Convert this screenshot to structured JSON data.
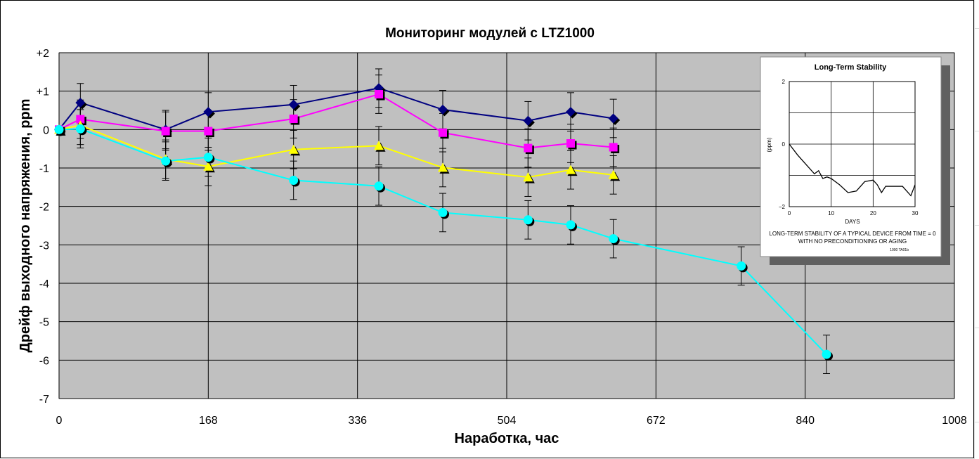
{
  "chart_data": {
    "type": "line",
    "title": "Мониторинг модулей с LTZ1000",
    "xlabel": "Наработка, час",
    "ylabel": "Дрейф выходного напряжения, ppm",
    "xlim": [
      0,
      1008
    ],
    "ylim": [
      -7,
      2
    ],
    "x_ticks": [
      0,
      168,
      336,
      504,
      672,
      840,
      1008
    ],
    "x_tick_labels": [
      "0",
      "168",
      "336",
      "504",
      "672",
      "840",
      "1008"
    ],
    "y_ticks": [
      2,
      1,
      0,
      -1,
      -2,
      -3,
      -4,
      -5,
      -6,
      -7
    ],
    "y_tick_labels": [
      "+2",
      "+1",
      "0",
      "-1",
      "-2",
      "-3",
      "-4",
      "-5",
      "-6",
      "-7"
    ],
    "grid": true,
    "plot_background": "#c0c0c0",
    "error_bar": 0.5,
    "series": [
      {
        "color": "#000080",
        "marker": "diamond",
        "x": [
          0,
          24,
          120,
          168,
          264,
          360,
          432,
          528,
          576,
          624
        ],
        "y": [
          0,
          0.7,
          0,
          0.46,
          0.65,
          1.08,
          0.52,
          0.23,
          0.46,
          0.29
        ]
      },
      {
        "color": "#ff00ff",
        "marker": "square",
        "x": [
          0,
          24,
          120,
          168,
          264,
          360,
          432,
          528,
          576,
          624
        ],
        "y": [
          0,
          0.27,
          -0.04,
          -0.04,
          0.28,
          0.92,
          -0.08,
          -0.48,
          -0.36,
          -0.46
        ]
      },
      {
        "color": "#ffff00",
        "marker": "triangle",
        "x": [
          0,
          24,
          120,
          168,
          264,
          360,
          432,
          528,
          576,
          624
        ],
        "y": [
          0,
          0.11,
          -0.77,
          -0.96,
          -0.52,
          -0.42,
          -0.99,
          -1.24,
          -1.05,
          -1.18
        ]
      },
      {
        "color": "#00ffff",
        "marker": "circle",
        "x": [
          0,
          24,
          120,
          168,
          264,
          360,
          432,
          528,
          576,
          624,
          768,
          864
        ],
        "y": [
          0,
          0.02,
          -0.82,
          -0.72,
          -1.32,
          -1.47,
          -2.16,
          -2.35,
          -2.48,
          -2.84,
          -3.55,
          -5.85
        ]
      }
    ],
    "inset": {
      "title": "Long-Term Stability",
      "ylabel": "(ppm)",
      "xlabel": "DAYS",
      "y_tick_labels": [
        "2",
        "0",
        "−2"
      ],
      "x_tick_labels": [
        "0",
        "10",
        "20",
        "30"
      ],
      "caption_line1": "LONG-TERM STABILITY OF A TYPICAL DEVICE FROM TIME = 0",
      "caption_line2": "WITH NO PRECONDITIONING OR AGING",
      "figure_code": "1000 TA01b",
      "x": [
        0,
        2,
        4,
        6,
        7,
        8,
        9,
        10,
        12,
        14,
        16,
        18,
        20,
        21,
        22,
        23,
        25,
        27,
        29,
        30
      ],
      "y": [
        0,
        -0.35,
        -0.65,
        -0.95,
        -0.85,
        -1.1,
        -1.05,
        -1.1,
        -1.3,
        -1.55,
        -1.5,
        -1.2,
        -1.15,
        -1.3,
        -1.55,
        -1.35,
        -1.35,
        -1.35,
        -1.65,
        -1.3
      ]
    }
  }
}
